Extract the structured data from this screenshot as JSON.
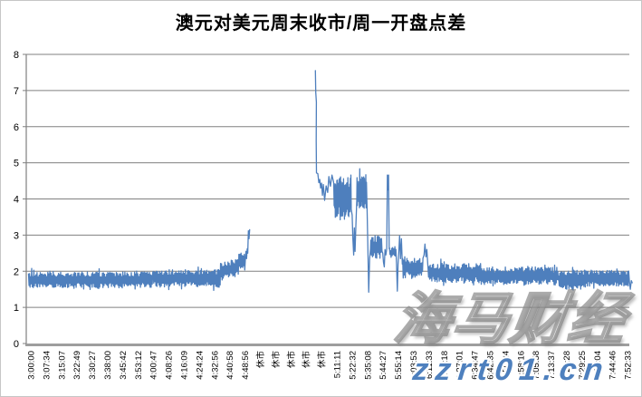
{
  "watermarks": {
    "brand": "海马财经",
    "site": "zzrt01.cn"
  },
  "colors": {
    "line": "#4E7FBD",
    "grid": "#808080",
    "axis_x": "#9E9E9E",
    "axis_y": "#808080",
    "text": "#000000",
    "watermark_blue": "#4E80BE"
  },
  "chart_data": {
    "type": "line",
    "title": "澳元对美元周末收市/周一开盘点差",
    "series_name": "周末收市/周一开盘点差",
    "ylabel": "",
    "xlabel": "",
    "ylim": [
      0,
      8
    ],
    "y_ticks": [
      0,
      1,
      2,
      3,
      4,
      5,
      6,
      7,
      8
    ],
    "grid": "horizontal",
    "legend": "none",
    "x_closed_label": "休市",
    "x_labels": [
      "3:00:00",
      "3:07:34",
      "3:15:07",
      "3:22:49",
      "3:30:27",
      "3:38:00",
      "3:45:42",
      "3:53:12",
      "4:00:47",
      "4:08:26",
      "4:16:09",
      "4:24:24",
      "4:32:56",
      "4:40:58",
      "4:48:56",
      "休市",
      "休市",
      "休市",
      "休市",
      "休市",
      "5:11:11",
      "5:22:32",
      "5:35:08",
      "5:44:27",
      "5:55:14",
      "6:03:53",
      "6:11:33",
      "6:19:18",
      "6:27:01",
      "6:34:47",
      "6:42:35",
      "6:50:24",
      "6:58:16",
      "7:05:58",
      "7:13:37",
      "7:21:28",
      "7:29:25",
      "7:37:04",
      "7:44:46",
      "7:52:33"
    ],
    "segments": [
      {
        "type": "noise",
        "t0": -0.15,
        "t1": 8,
        "base": 1.76,
        "amp": 0.22
      },
      {
        "type": "noise",
        "t0": 8,
        "t1": 12.4,
        "base": 1.8,
        "amp": 0.25
      },
      {
        "type": "noise",
        "t0": 12.4,
        "t1": 13.6,
        "base": 2.0,
        "base1": 2.1,
        "amp": 0.26
      },
      {
        "type": "noise",
        "t0": 13.6,
        "t1": 14.0,
        "base": 2.25,
        "amp": 0.27
      },
      {
        "type": "points",
        "pts": [
          [
            14.02,
            2.3
          ],
          [
            14.06,
            2.55
          ],
          [
            14.1,
            2.35
          ],
          [
            14.14,
            2.62
          ],
          [
            14.18,
            2.5
          ],
          [
            14.22,
            3.12
          ],
          [
            14.26,
            2.9
          ],
          [
            14.3,
            3.15
          ]
        ]
      },
      {
        "type": "gap"
      },
      {
        "type": "points",
        "pts": [
          [
            18.6,
            7.55
          ],
          [
            18.62,
            6.95
          ],
          [
            18.66,
            6.68
          ],
          [
            18.65,
            5.6
          ],
          [
            18.67,
            4.72
          ],
          [
            18.76,
            4.7
          ],
          [
            18.82,
            4.45
          ],
          [
            18.88,
            4.54
          ],
          [
            18.94,
            4.3
          ],
          [
            19.0,
            4.44
          ],
          [
            19.06,
            4.1
          ],
          [
            19.12,
            4.4
          ],
          [
            19.2,
            3.96
          ],
          [
            19.3,
            4.36
          ],
          [
            19.4,
            4.18
          ],
          [
            19.48,
            4.62
          ],
          [
            19.58,
            4.35
          ],
          [
            19.68,
            4.66
          ],
          [
            19.78,
            4.48
          ]
        ]
      },
      {
        "type": "noise",
        "t0": 19.8,
        "t1": 20.95,
        "base": 4.05,
        "amp": 0.63,
        "dt": 0.02
      },
      {
        "type": "points",
        "pts": [
          [
            21.0,
            3.55
          ],
          [
            21.05,
            2.9
          ],
          [
            21.1,
            2.45
          ],
          [
            21.14,
            3.2
          ],
          [
            21.19,
            2.55
          ],
          [
            21.24,
            3.25
          ],
          [
            21.3,
            3.95
          ]
        ]
      },
      {
        "type": "noise",
        "t0": 21.32,
        "t1": 21.95,
        "base": 4.2,
        "amp": 0.48,
        "dt": 0.022
      },
      {
        "type": "points",
        "pts": [
          [
            21.98,
            3.6
          ],
          [
            22.03,
            2.6
          ],
          [
            22.08,
            1.42
          ],
          [
            22.14,
            2.35
          ],
          [
            22.2,
            2.62
          ]
        ]
      },
      {
        "type": "noise",
        "t0": 22.22,
        "t1": 22.98,
        "base": 2.68,
        "amp": 0.32
      },
      {
        "type": "points",
        "pts": [
          [
            23.0,
            2.5
          ],
          [
            23.05,
            2.25
          ],
          [
            23.1,
            2.12
          ],
          [
            23.15,
            2.6
          ],
          [
            23.2,
            2.45
          ],
          [
            23.26,
            2.62
          ],
          [
            23.3,
            4.66
          ],
          [
            23.34,
            4.25
          ],
          [
            23.38,
            4.66
          ],
          [
            23.42,
            2.62
          ]
        ]
      },
      {
        "type": "noise",
        "t0": 23.44,
        "t1": 23.88,
        "base": 2.52,
        "amp": 0.14
      },
      {
        "type": "points",
        "pts": [
          [
            23.9,
            2.2
          ],
          [
            23.95,
            1.45
          ],
          [
            24.0,
            2.2
          ],
          [
            24.06,
            2.62
          ],
          [
            24.1,
            2.98
          ],
          [
            24.16,
            2.35
          ],
          [
            24.22,
            2.9
          ],
          [
            24.28,
            2.2
          ]
        ]
      },
      {
        "type": "noise",
        "t0": 24.3,
        "t1": 25.65,
        "base": 2.1,
        "amp": 0.3
      },
      {
        "type": "points",
        "pts": [
          [
            25.7,
            2.45
          ],
          [
            25.76,
            2.75
          ],
          [
            25.82,
            2.4
          ],
          [
            25.88,
            2.6
          ],
          [
            25.94,
            2.2
          ]
        ]
      },
      {
        "type": "noise",
        "t0": 25.96,
        "t1": 29.4,
        "base": 1.95,
        "amp": 0.27
      },
      {
        "type": "noise",
        "t0": 29.4,
        "t1": 34.5,
        "base": 1.87,
        "amp": 0.25
      },
      {
        "type": "noise",
        "t0": 34.5,
        "t1": 36.2,
        "base": 1.75,
        "amp": 0.28
      },
      {
        "type": "noise",
        "t0": 36.2,
        "t1": 39.1,
        "base": 1.8,
        "amp": 0.23
      },
      {
        "type": "points",
        "pts": [
          [
            39.12,
            1.72
          ],
          [
            39.18,
            1.5
          ],
          [
            39.24,
            1.74
          ],
          [
            39.3,
            1.68
          ]
        ]
      }
    ]
  }
}
